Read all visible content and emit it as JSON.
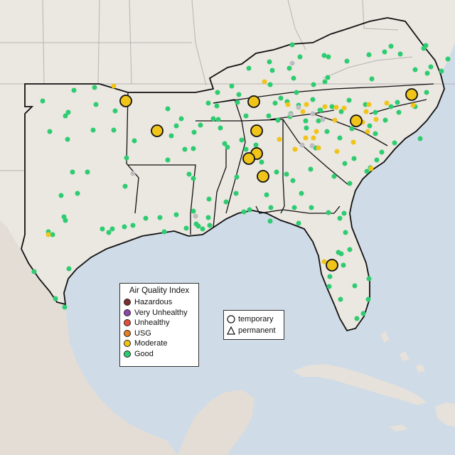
{
  "colors": {
    "ocean": "#cfdbe6",
    "land": "#ebe7e1",
    "land_alt": "#e6e1da",
    "mexico": "#e3ddd6",
    "state_border": "#b5b5b5",
    "region_border": "#111111",
    "good": "#2ecc71",
    "moderate": "#f0c419",
    "gray": "#bdbdbd",
    "marker_outline": "#111111"
  },
  "legend": {
    "title": "Air Quality Index",
    "items": [
      {
        "label": "Hazardous",
        "color": "#7e2f2f"
      },
      {
        "label": "Very Unhealthy",
        "color": "#8e44ad"
      },
      {
        "label": "Unhealthy",
        "color": "#e74c3c"
      },
      {
        "label": "USG",
        "color": "#e67e22"
      },
      {
        "label": "Moderate",
        "color": "#f1c40f"
      },
      {
        "label": "Good",
        "color": "#2ecc71"
      }
    ]
  },
  "shape_legend": {
    "temporary": "temporary",
    "permanent": "permanent"
  }
}
